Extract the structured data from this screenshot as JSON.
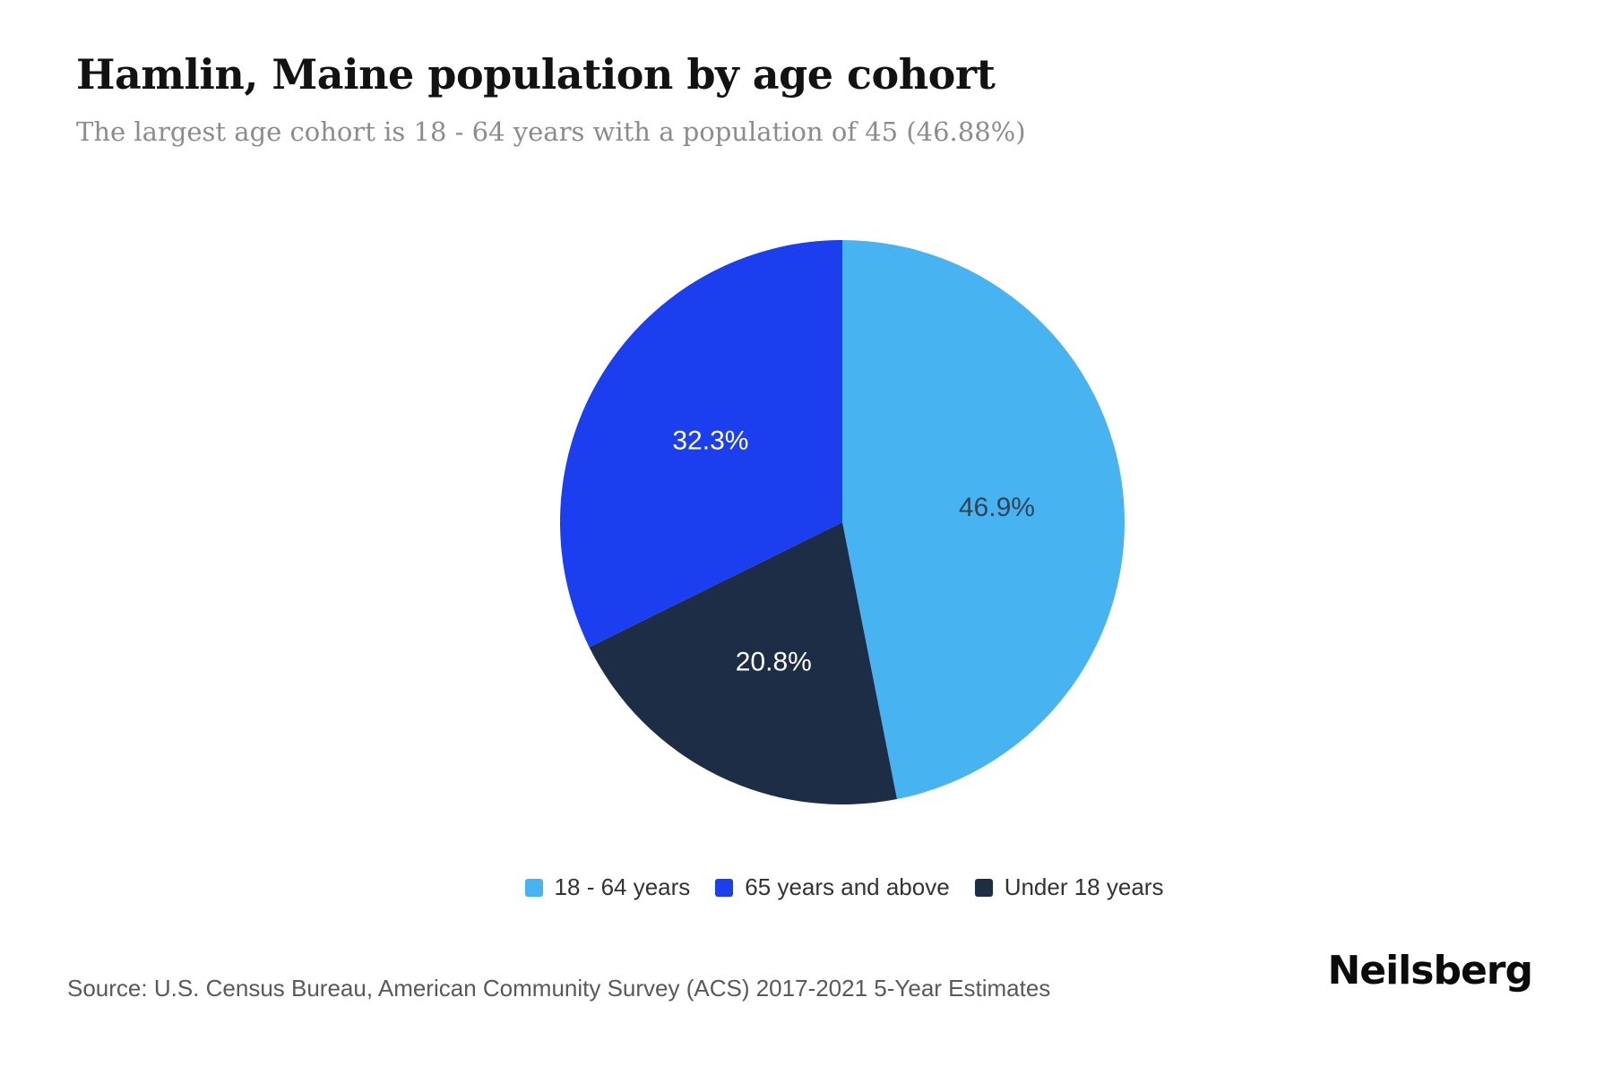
{
  "header": {
    "title": "Hamlin, Maine population by age cohort",
    "subtitle": "The largest age cohort is 18 - 64 years with a population of 45 (46.88%)"
  },
  "chart_data": {
    "type": "pie",
    "title": "Hamlin, Maine population by age cohort",
    "unit": "percent",
    "start_angle": "12-oclock",
    "direction": "clockwise",
    "slices": [
      {
        "label": "18 - 64 years",
        "value": 46.9,
        "display_label": "46.9%",
        "color": "#47b3f0",
        "label_color": "#2f4459"
      },
      {
        "label": "Under 18 years",
        "value": 20.8,
        "display_label": "20.8%",
        "color": "#1c2d45",
        "label_color": "#ffffff"
      },
      {
        "label": "65 years and above",
        "value": 32.3,
        "display_label": "32.3%",
        "color": "#1b3eee",
        "label_color": "#ffffff"
      }
    ],
    "legend_order": [
      0,
      2,
      1
    ],
    "legend_position": "bottom-center"
  },
  "footer": {
    "source": "Source: U.S. Census Bureau, American Community Survey (ACS) 2017-2021 5-Year Estimates",
    "logo_text": "Neilsberg"
  }
}
